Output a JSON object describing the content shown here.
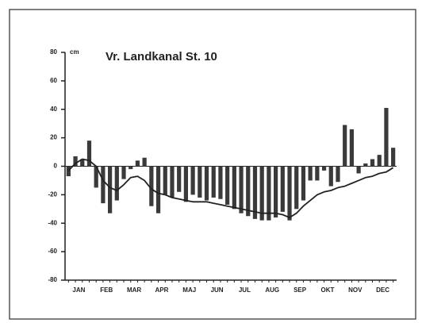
{
  "chart_data": {
    "type": "bar",
    "title": "Vr. Landkanal St. 10",
    "y_unit": "cm",
    "categories": [
      null,
      "JAN",
      null,
      null,
      null,
      "FEB",
      null,
      null,
      null,
      "MAR",
      null,
      null,
      null,
      "APR",
      null,
      null,
      null,
      "MAJ",
      null,
      null,
      null,
      "JUN",
      null,
      null,
      null,
      "JUL",
      null,
      null,
      null,
      "AUG",
      null,
      null,
      null,
      "SEP",
      null,
      null,
      null,
      "OKT",
      null,
      null,
      null,
      "NOV",
      null,
      null,
      null,
      "DEC",
      null,
      null
    ],
    "series": [
      {
        "type": "bar",
        "color": "#3a3a3a",
        "values": [
          -7,
          7,
          5,
          18,
          -15,
          -26,
          -33,
          -24,
          -9,
          -2,
          4,
          6,
          -28,
          -33,
          -20,
          -22,
          -18,
          -25,
          -20,
          -22,
          -24,
          -22,
          -23,
          -27,
          -30,
          -33,
          -35,
          -37,
          -38,
          -38,
          -36,
          -32,
          -38,
          -30,
          -24,
          -10,
          -10,
          -3,
          -14,
          -11,
          29,
          26,
          -5,
          2,
          5,
          8,
          41,
          13
        ]
      },
      {
        "type": "line",
        "color": "#222222",
        "values": [
          -3,
          2,
          5,
          4,
          0,
          -10,
          -15,
          -17,
          -13,
          -8,
          -7,
          -10,
          -16,
          -19,
          -20,
          -22,
          -23,
          -24,
          -25,
          -25,
          -25,
          -26,
          -27,
          -28,
          -29,
          -30,
          -31,
          -32,
          -33,
          -33,
          -33,
          -34,
          -36,
          -33,
          -28,
          -24,
          -20,
          -18,
          -17,
          -15,
          -14,
          -12,
          -10,
          -8,
          -7,
          -5,
          -4,
          -1
        ]
      }
    ],
    "ylim": [
      -80,
      80
    ],
    "yticks": [
      -80,
      -60,
      -40,
      -20,
      0,
      20,
      40,
      60,
      80
    ],
    "grid": false
  }
}
